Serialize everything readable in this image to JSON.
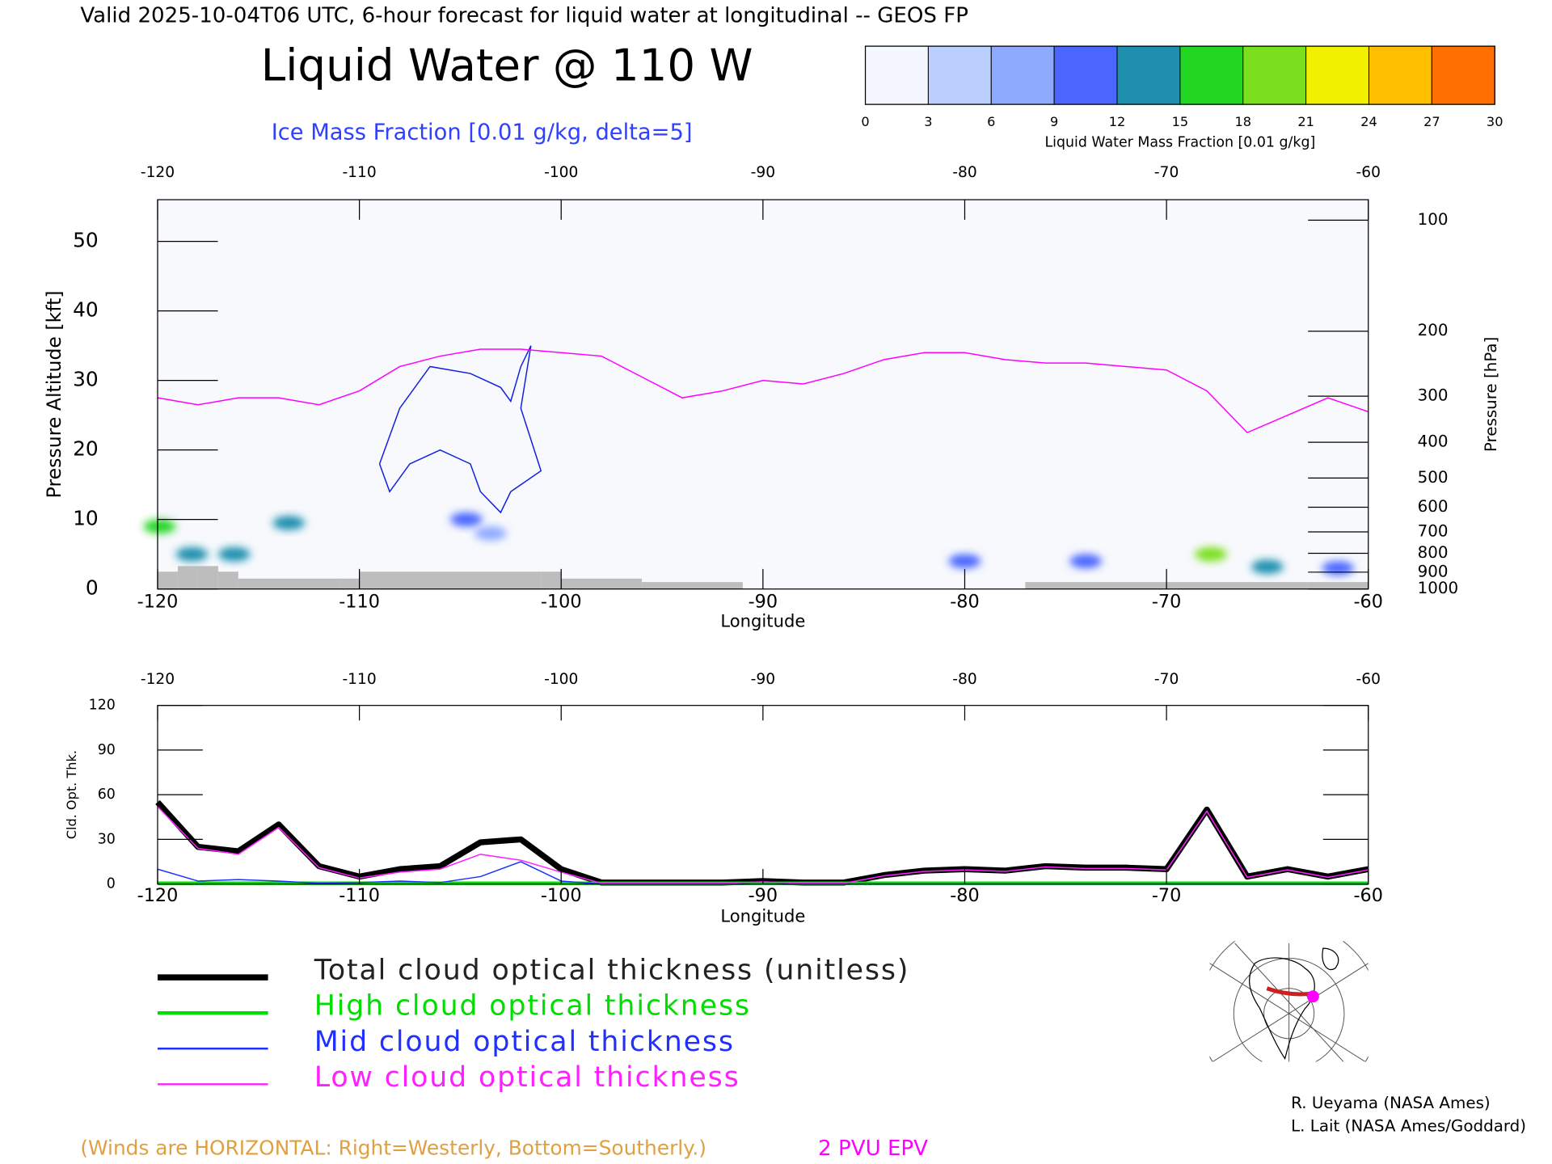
{
  "chart_data": [
    {
      "type": "cross_section",
      "header": "Valid 2025-10-04T06 UTC, 6-hour forecast for liquid water at longitudinal -- GEOS FP",
      "title": "Liquid Water @ 110 W",
      "subtitle": "Ice Mass Fraction [0.01 g/kg, delta=5]",
      "xlabel": "Longitude",
      "ylabel": "Pressure Altitude [kft]",
      "y2label": "Pressure [hPa]",
      "xlim": [
        -120,
        -60
      ],
      "xticks": [
        -120,
        -110,
        -100,
        -90,
        -80,
        -70,
        -60
      ],
      "ylim": [
        0,
        56
      ],
      "yticks": [
        0,
        10,
        20,
        30,
        40,
        50
      ],
      "y2lim": [
        1000,
        88
      ],
      "y2scale": "log",
      "y2ticks": [
        100,
        200,
        300,
        400,
        500,
        600,
        700,
        800,
        900,
        1000
      ],
      "colorbar": {
        "label": "Liquid Water Mass Fraction [0.01 g/kg]",
        "lim": [
          0,
          30
        ],
        "ticks": [
          0,
          3,
          6,
          9,
          12,
          15,
          18,
          21,
          24,
          27,
          30
        ],
        "colors": [
          "#f4f7ff",
          "#bcd0ff",
          "#8eaaff",
          "#4a66ff",
          "#1f8fae",
          "#22d622",
          "#7ae01e",
          "#f0f000",
          "#ffbf00",
          "#ff7000"
        ]
      },
      "liquid_water": {
        "x": [
          -119.9,
          -118.3,
          -116.2,
          -113.5,
          -104.7,
          -103.5,
          -80,
          -74,
          -67.8,
          -65,
          -61.5
        ],
        "y": [
          9,
          5,
          5,
          9.5,
          10,
          8,
          4,
          4,
          5,
          3.2,
          3
        ],
        "values": [
          16,
          12,
          13,
          13,
          9,
          7,
          9,
          9,
          18,
          13,
          10
        ]
      },
      "ice_contour": {
        "color": "#1020e0",
        "x": [
          -109,
          -108,
          -106.5,
          -104.5,
          -103,
          -102.5,
          -102,
          -101.5,
          -102,
          -101,
          -102.5,
          -103,
          -104,
          -104.5,
          -106,
          -107.5,
          -108.5,
          -109
        ],
        "y": [
          18,
          26,
          32,
          31,
          29,
          27,
          32,
          35,
          26,
          17,
          14,
          11,
          14,
          18,
          20,
          18,
          14,
          18
        ]
      },
      "epv": {
        "name": "2 PVU EPV",
        "color": "#ff00ff",
        "x": [
          -120,
          -118,
          -116,
          -114,
          -112,
          -110,
          -108,
          -106,
          -104,
          -102,
          -100,
          -98,
          -96,
          -94,
          -92,
          -90,
          -88,
          -86,
          -84,
          -82,
          -80,
          -78,
          -76,
          -74,
          -72,
          -70,
          -68,
          -66,
          -64,
          -62,
          -60
        ],
        "values": [
          27.5,
          26.5,
          27.5,
          27.5,
          26.5,
          28.5,
          32,
          33.5,
          34.5,
          34.5,
          34,
          33.5,
          30.5,
          27.5,
          28.5,
          30,
          29.5,
          31,
          33,
          34,
          34,
          33,
          32.5,
          32.5,
          32,
          31.5,
          28.5,
          22.5,
          25,
          27.5,
          25.5
        ]
      },
      "terrain": {
        "color": "#bdbdbd",
        "x": [
          -120,
          -119,
          -118,
          -117,
          -116,
          -111,
          -110,
          -101,
          -100,
          -96,
          -92,
          -91,
          -77,
          -70,
          -63
        ],
        "values": [
          2.5,
          3.3,
          3.3,
          2.5,
          1.5,
          1.5,
          2.5,
          2.5,
          1.5,
          1,
          1,
          0,
          1,
          1,
          1
        ]
      },
      "note": "(Winds are HORIZONTAL: Right=Westerly, Bottom=Southerly.)"
    },
    {
      "type": "line",
      "xlabel": "Longitude",
      "ylabel": "Cld. Opt. Thk.",
      "xlim": [
        -120,
        -60
      ],
      "xticks": [
        -120,
        -110,
        -100,
        -90,
        -80,
        -70,
        -60
      ],
      "ylim": [
        0,
        120
      ],
      "yticks": [
        0,
        30,
        60,
        90,
        120
      ],
      "x": [
        -120,
        -118,
        -116,
        -114,
        -112,
        -110,
        -108,
        -106,
        -104,
        -102,
        -100,
        -98,
        -96,
        -94,
        -92,
        -90,
        -88,
        -86,
        -84,
        -82,
        -80,
        -78,
        -76,
        -74,
        -72,
        -70,
        -68,
        -66,
        -64,
        -62,
        -60
      ],
      "series": [
        {
          "name": "Total cloud optical thickness (unitless)",
          "color": "#000000",
          "values": [
            55,
            25,
            22,
            40,
            12,
            5,
            10,
            12,
            28,
            30,
            10,
            1,
            1,
            1,
            1,
            2,
            1,
            1,
            6,
            9,
            10,
            9,
            12,
            11,
            11,
            10,
            50,
            5,
            10,
            5,
            10
          ]
        },
        {
          "name": "High cloud optical thickness",
          "color": "#00dd00",
          "values": [
            0.5,
            0.5,
            0.5,
            0.5,
            0.5,
            0.5,
            0.5,
            0.5,
            0.5,
            0.5,
            0.5,
            0.5,
            0.5,
            0.5,
            0.5,
            0.5,
            0.5,
            0.5,
            0.5,
            0.5,
            0.5,
            0.5,
            0.5,
            0.5,
            0.5,
            0.5,
            0.5,
            0.5,
            0.5,
            0.5,
            0.5
          ]
        },
        {
          "name": "Mid cloud optical thickness",
          "color": "#2030ff",
          "values": [
            10,
            2,
            3,
            2,
            0.5,
            1,
            2,
            1,
            5,
            15,
            2,
            0,
            0,
            0,
            0,
            0,
            0,
            0,
            0,
            0,
            0,
            0,
            0,
            0,
            0,
            0,
            0,
            0,
            0,
            0,
            0
          ]
        },
        {
          "name": "Low cloud optical thickness",
          "color": "#ff20ff",
          "values": [
            52,
            24,
            20,
            38,
            11,
            4,
            8,
            10,
            20,
            16,
            8,
            0.5,
            0.5,
            0.5,
            0.5,
            1.5,
            0.5,
            0.5,
            5.5,
            8.5,
            9.5,
            8.5,
            11.5,
            10.5,
            10.5,
            9.5,
            49,
            4.5,
            9.5,
            4.5,
            9.5
          ]
        }
      ]
    }
  ],
  "credits": [
    "R. Ueyama (NASA Ames)",
    "L. Lait (NASA Ames/Goddard)"
  ]
}
